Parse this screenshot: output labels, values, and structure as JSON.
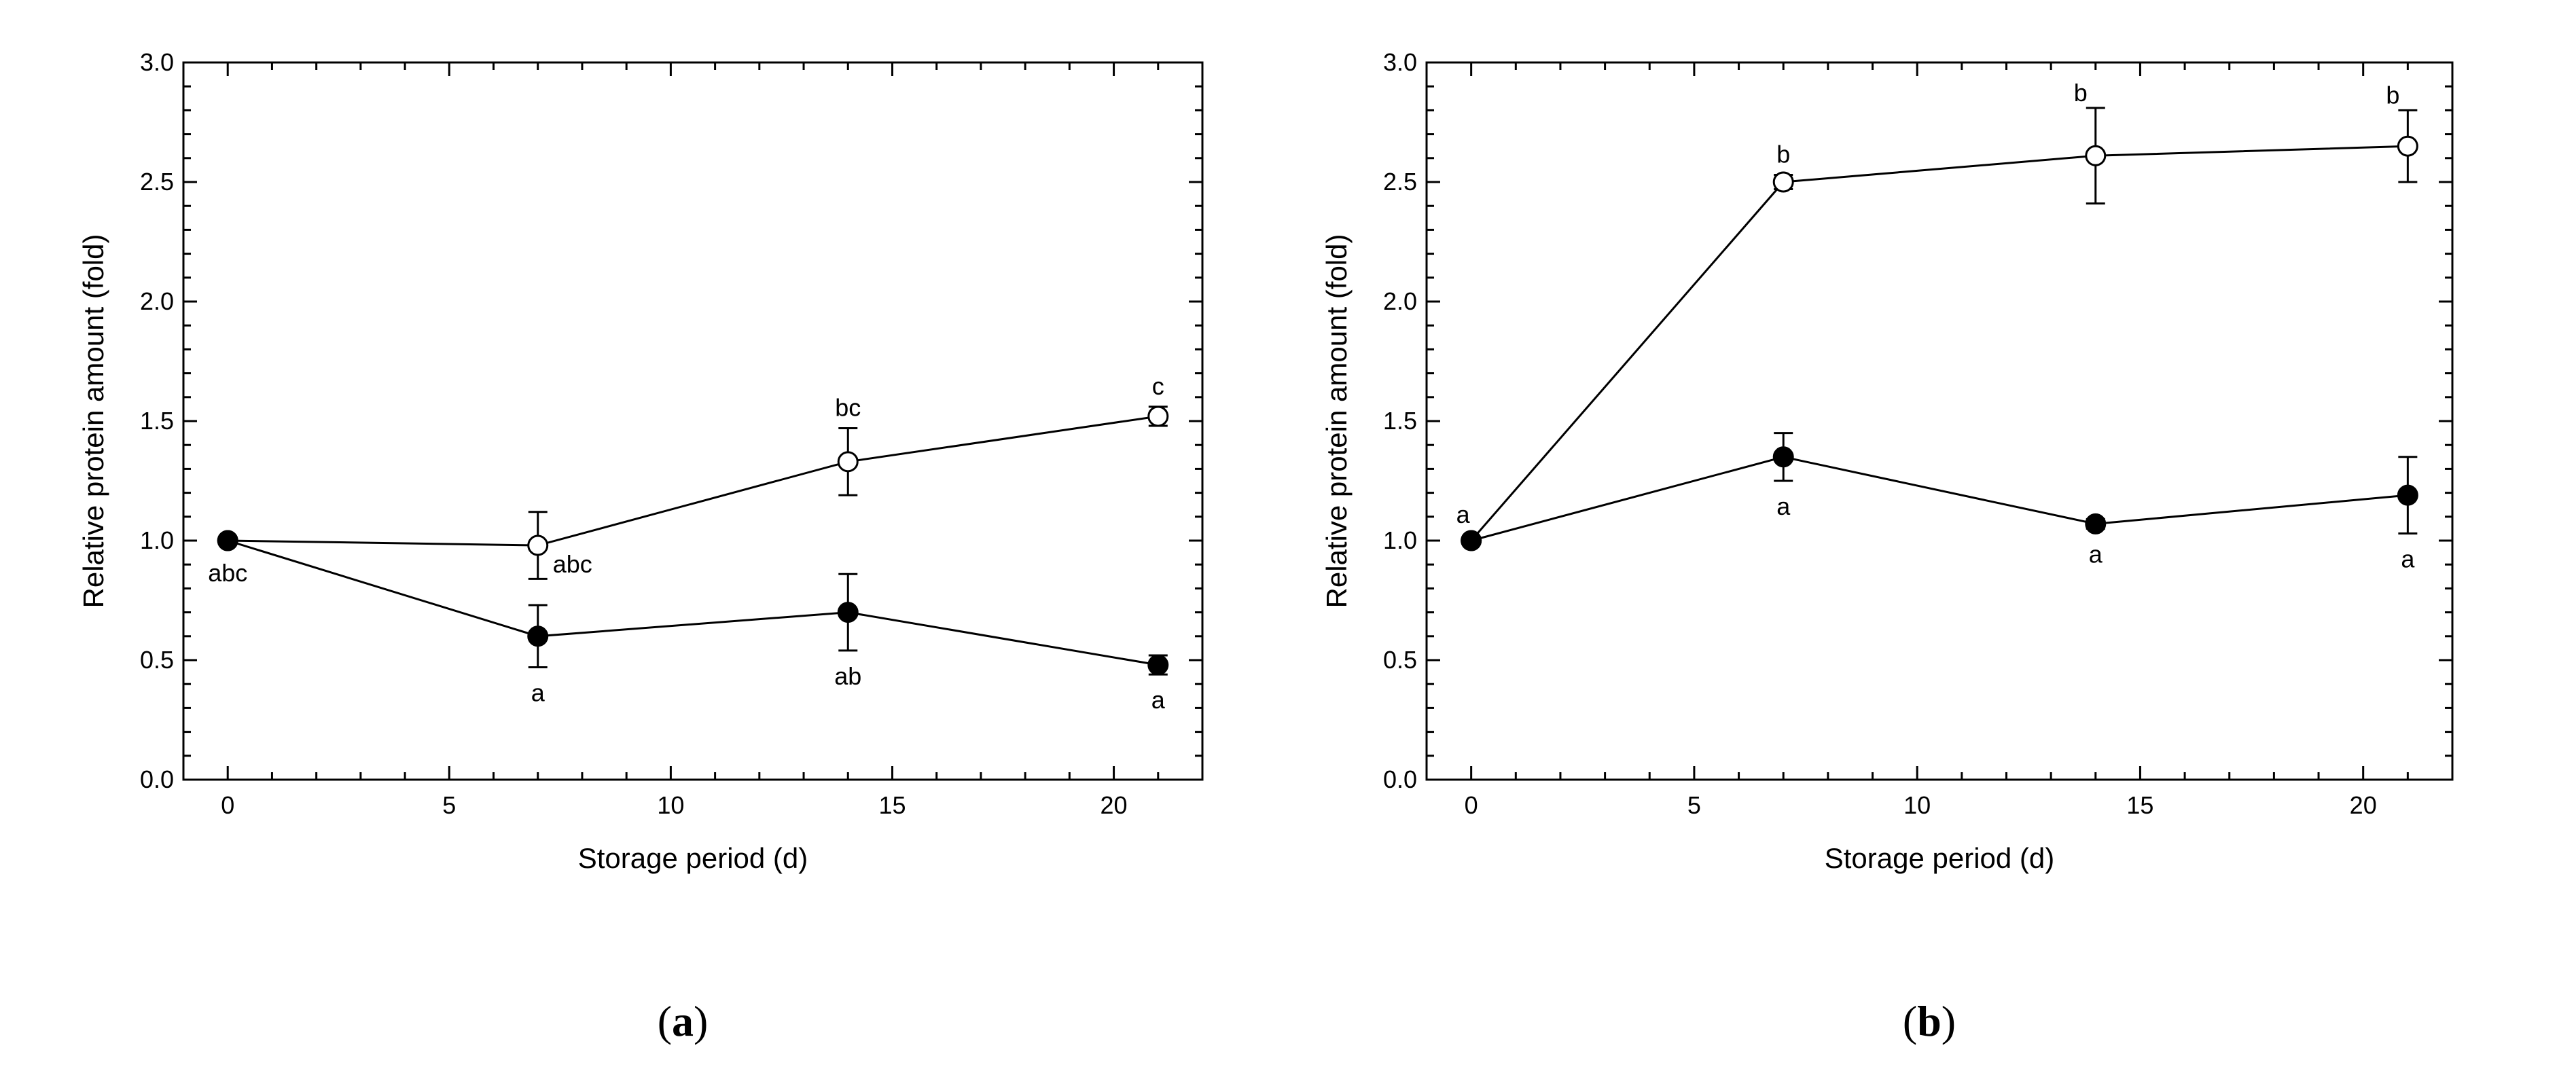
{
  "chart_data": [
    {
      "type": "line",
      "panel": "a",
      "panel_label": {
        "open": "(",
        "letter": "a",
        "close": ")"
      },
      "xlabel": "Storage period (d)",
      "ylabel": "Relative protein amount (fold)",
      "xlim": [
        -1,
        22
      ],
      "ylim": [
        0,
        3
      ],
      "xticks": [
        0,
        5,
        10,
        15,
        20
      ],
      "yticks": [
        0.0,
        0.5,
        1.0,
        1.5,
        2.0,
        2.5,
        3.0
      ],
      "ytick_labels": [
        "0.0",
        "0.5",
        "1.0",
        "1.5",
        "2.0",
        "2.5",
        "3.0"
      ],
      "series": [
        {
          "marker": "open-circle",
          "x": [
            0,
            7,
            14,
            21
          ],
          "values": [
            1.0,
            0.98,
            1.33,
            1.52
          ],
          "errors": [
            0.0,
            0.14,
            0.14,
            0.04
          ],
          "annotations": [
            {
              "x": 7,
              "text": "abc",
              "pos": "right-below"
            },
            {
              "x": 14,
              "text": "bc",
              "pos": "above"
            },
            {
              "x": 21,
              "text": "c",
              "pos": "above"
            }
          ]
        },
        {
          "marker": "filled-circle",
          "x": [
            0,
            7,
            14,
            21
          ],
          "values": [
            1.0,
            0.6,
            0.7,
            0.48
          ],
          "errors": [
            0.0,
            0.13,
            0.16,
            0.04
          ],
          "annotations": [
            {
              "x": 0,
              "text": "abc",
              "pos": "below"
            },
            {
              "x": 7,
              "text": "a",
              "pos": "below"
            },
            {
              "x": 14,
              "text": "ab",
              "pos": "below"
            },
            {
              "x": 21,
              "text": "a",
              "pos": "below"
            }
          ]
        }
      ]
    },
    {
      "type": "line",
      "panel": "b",
      "panel_label": {
        "open": "(",
        "letter": "b",
        "close": ")"
      },
      "xlabel": "Storage period (d)",
      "ylabel": "Relative protein amount (fold)",
      "xlim": [
        -1,
        22
      ],
      "ylim": [
        0,
        3
      ],
      "xticks": [
        0,
        5,
        10,
        15,
        20
      ],
      "yticks": [
        0.0,
        0.5,
        1.0,
        1.5,
        2.0,
        2.5,
        3.0
      ],
      "ytick_labels": [
        "0.0",
        "0.5",
        "1.0",
        "1.5",
        "2.0",
        "2.5",
        "3.0"
      ],
      "series": [
        {
          "marker": "open-circle",
          "x": [
            0,
            7,
            14,
            21
          ],
          "values": [
            1.0,
            2.5,
            2.61,
            2.65
          ],
          "errors": [
            0.0,
            0.03,
            0.2,
            0.15
          ],
          "annotations": [
            {
              "x": 0,
              "text": "a",
              "pos": "above-left"
            },
            {
              "x": 7,
              "text": "b",
              "pos": "above"
            },
            {
              "x": 14,
              "text": "b",
              "pos": "above-left"
            },
            {
              "x": 21,
              "text": "b",
              "pos": "above-left"
            }
          ]
        },
        {
          "marker": "filled-circle",
          "x": [
            0,
            7,
            14,
            21
          ],
          "values": [
            1.0,
            1.35,
            1.07,
            1.19
          ],
          "errors": [
            0.0,
            0.1,
            0.02,
            0.16
          ],
          "annotations": [
            {
              "x": 7,
              "text": "a",
              "pos": "below"
            },
            {
              "x": 14,
              "text": "a",
              "pos": "below"
            },
            {
              "x": 21,
              "text": "a",
              "pos": "below"
            }
          ]
        }
      ]
    }
  ]
}
